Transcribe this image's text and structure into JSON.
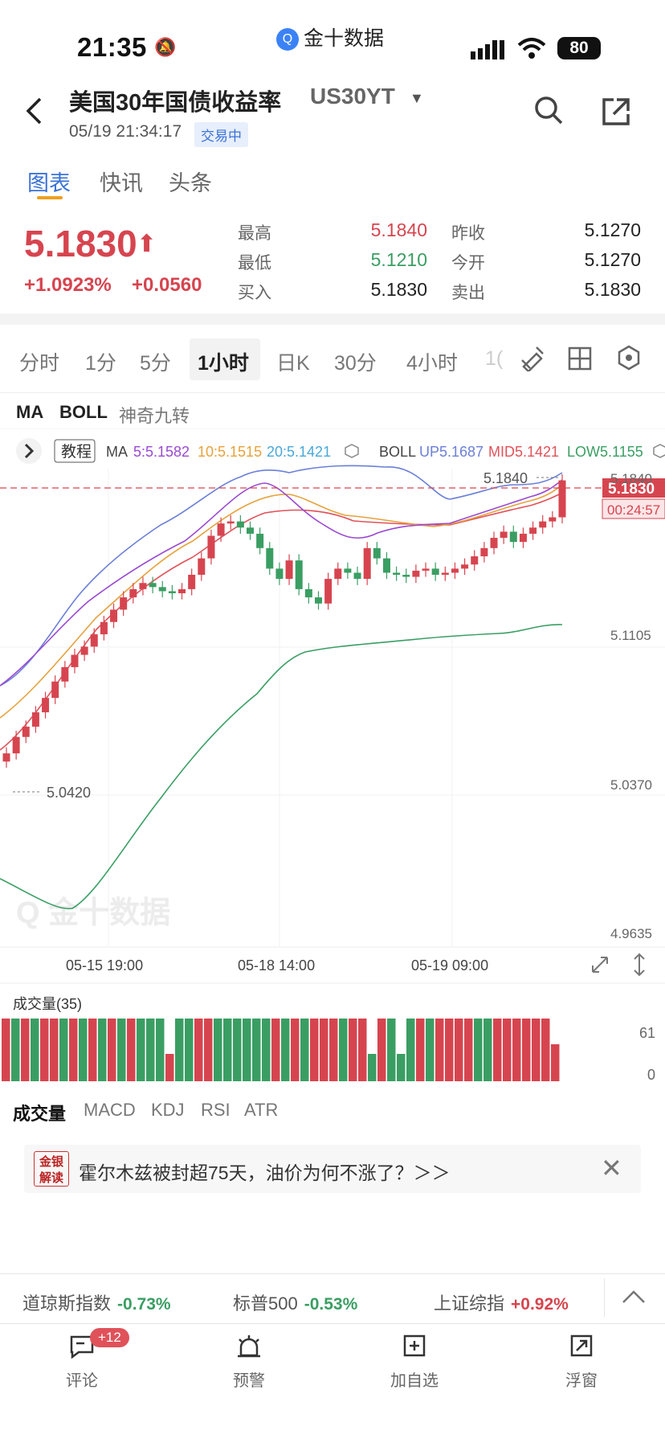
{
  "status_bar": {
    "time": "21:35",
    "app_name": "金十数据",
    "battery": "80"
  },
  "header": {
    "title": "美国30年国债收益率",
    "symbol": "US30YT",
    "datetime": "05/19 21:34:17",
    "status_badge": "交易中"
  },
  "tabs": [
    {
      "label": "图表"
    },
    {
      "label": "快讯"
    },
    {
      "label": "头条"
    }
  ],
  "quote": {
    "price": "5.1830",
    "change_pct": "+1.0923%",
    "change": "+0.0560",
    "stats": [
      {
        "label": "最高",
        "value": "5.1840",
        "color": "red"
      },
      {
        "label": "昨收",
        "value": "5.1270",
        "color": "dark"
      },
      {
        "label": "最低",
        "value": "5.1210",
        "color": "green"
      },
      {
        "label": "今开",
        "value": "5.1270",
        "color": "dark"
      },
      {
        "label": "买入",
        "value": "5.1830",
        "color": "dark"
      },
      {
        "label": "卖出",
        "value": "5.1830",
        "color": "dark"
      }
    ]
  },
  "periods": [
    "分时",
    "1分",
    "5分",
    "1小时",
    "日K",
    "30分",
    "4小时",
    "1("
  ],
  "active_period": "1小时",
  "indicator_tabs": [
    "MA",
    "BOLL",
    "神奇九转"
  ],
  "chart_legend": {
    "tutorial": "教程",
    "ma_label": "MA",
    "ma5": "5:5.1582",
    "ma10": "10:5.1515",
    "ma20": "20:5.1421",
    "boll_label": "BOLL",
    "up": "UP5.1687",
    "mid": "MID5.1421",
    "low": "LOW5.1155"
  },
  "chart_data": {
    "type": "candlestick",
    "y_ticks": [
      "5.1840",
      "5.1105",
      "5.0370",
      "4.9635"
    ],
    "ylim": [
      4.9635,
      5.184
    ],
    "x_ticks": [
      "05-15 19:00",
      "05-18 14:00",
      "05-19 09:00"
    ],
    "high_marker": "5.1840",
    "low_marker": "5.0420",
    "current_price": "5.1830",
    "countdown": "00:24:57",
    "closes": [
      5.05,
      5.058,
      5.063,
      5.07,
      5.077,
      5.085,
      5.092,
      5.098,
      5.102,
      5.108,
      5.114,
      5.12,
      5.126,
      5.13,
      5.133,
      5.131,
      5.129,
      5.128,
      5.13,
      5.137,
      5.145,
      5.156,
      5.162,
      5.163,
      5.16,
      5.157,
      5.15,
      5.14,
      5.135,
      5.144,
      5.13,
      5.126,
      5.123,
      5.135,
      5.14,
      5.138,
      5.135,
      5.15,
      5.145,
      5.138,
      5.137,
      5.136,
      5.139,
      5.14,
      5.137,
      5.138,
      5.14,
      5.142,
      5.146,
      5.15,
      5.155,
      5.158,
      5.153,
      5.157,
      5.16,
      5.163,
      5.165,
      5.183
    ],
    "volume_title": "成交量(35)",
    "volume_ticks": [
      "61",
      "0"
    ],
    "volume_colors": [
      "r",
      "g",
      "r",
      "g",
      "r",
      "r",
      "g",
      "r",
      "g",
      "r",
      "g",
      "r",
      "g",
      "r",
      "g",
      "g",
      "g",
      "r",
      "g",
      "g",
      "r",
      "r",
      "g",
      "g",
      "g",
      "g",
      "g",
      "g",
      "r",
      "g",
      "r",
      "g",
      "r",
      "r",
      "r",
      "g",
      "r",
      "r",
      "g",
      "r",
      "g",
      "g",
      "g",
      "r",
      "g",
      "r",
      "r",
      "r",
      "r",
      "g",
      "g",
      "r",
      "r",
      "r",
      "r",
      "r",
      "r",
      "r"
    ]
  },
  "lower_tabs": [
    "成交量",
    "MACD",
    "KDJ",
    "RSI",
    "ATR"
  ],
  "news": {
    "badge_line1": "金银",
    "badge_line2": "解读",
    "headline": "霍尔木兹被封超75天，油价为何不涨了？＞＞"
  },
  "market_strip": [
    {
      "name": "道琼斯指数",
      "value": "-0.73%",
      "color": "green"
    },
    {
      "name": "标普500",
      "value": "-0.53%",
      "color": "green"
    },
    {
      "name": "上证综指",
      "value": "+0.92%",
      "color": "red"
    }
  ],
  "bottom_nav": [
    {
      "label": "评论",
      "icon": "comment-icon",
      "badge": "+12"
    },
    {
      "label": "预警",
      "icon": "alarm-icon"
    },
    {
      "label": "加自选",
      "icon": "add-watchlist-icon"
    },
    {
      "label": "浮窗",
      "icon": "float-window-icon"
    }
  ],
  "colors": {
    "up": "#d6454f",
    "down": "#3a9e63",
    "accent": "#3b73d6"
  }
}
